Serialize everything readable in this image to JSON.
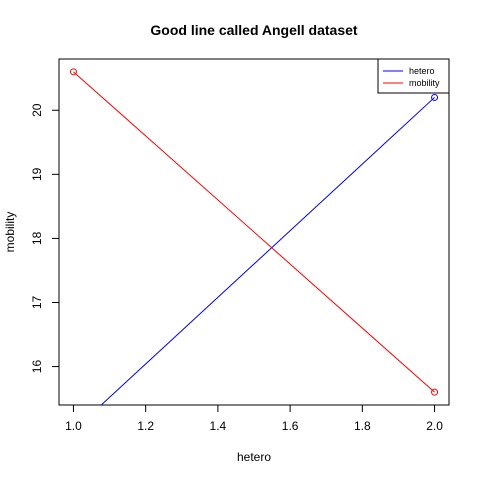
{
  "chart_data": {
    "type": "line",
    "title": "Good line called Angell dataset",
    "xlabel": "hetero",
    "ylabel": "mobility",
    "xlim": [
      0.96,
      2.04
    ],
    "ylim": [
      15.4,
      20.8
    ],
    "x_ticks": [
      1.0,
      1.2,
      1.4,
      1.6,
      1.8,
      2.0
    ],
    "x_tick_labels": [
      "1.0",
      "1.2",
      "1.4",
      "1.6",
      "1.8",
      "2.0"
    ],
    "y_ticks": [
      16,
      17,
      18,
      19,
      20
    ],
    "y_tick_labels": [
      "16",
      "17",
      "18",
      "19",
      "20"
    ],
    "grid": false,
    "legend_position": "top-right",
    "series": [
      {
        "name": "hetero",
        "color": "#0000ff",
        "x": [
          1.0,
          2.0
        ],
        "y": [
          15.0,
          20.2
        ]
      },
      {
        "name": "mobility",
        "color": "#ff0000",
        "x": [
          1.0,
          2.0
        ],
        "y": [
          20.6,
          15.6
        ]
      }
    ]
  }
}
